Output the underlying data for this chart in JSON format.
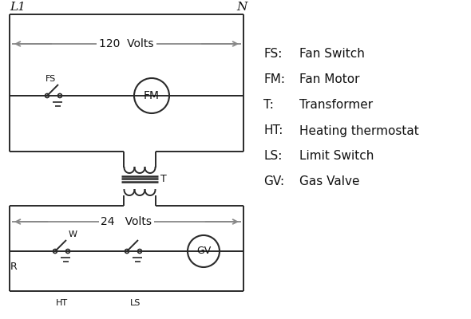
{
  "bg_color": "#ffffff",
  "line_color": "#2a2a2a",
  "arrow_color": "#888888",
  "text_color": "#111111",
  "legend_items": [
    [
      "FS:    Fan Switch"
    ],
    [
      "FM:   Fan Motor"
    ],
    [
      "T:       Transformer"
    ],
    [
      "HT:    Heating thermostat"
    ],
    [
      "LS:    Limit Switch"
    ],
    [
      "GV:   Gas Valve"
    ]
  ],
  "title_L1": "L1",
  "title_N": "N",
  "volts_120": "120  Volts",
  "volts_24": "24   Volts",
  "transformer_label": "T"
}
